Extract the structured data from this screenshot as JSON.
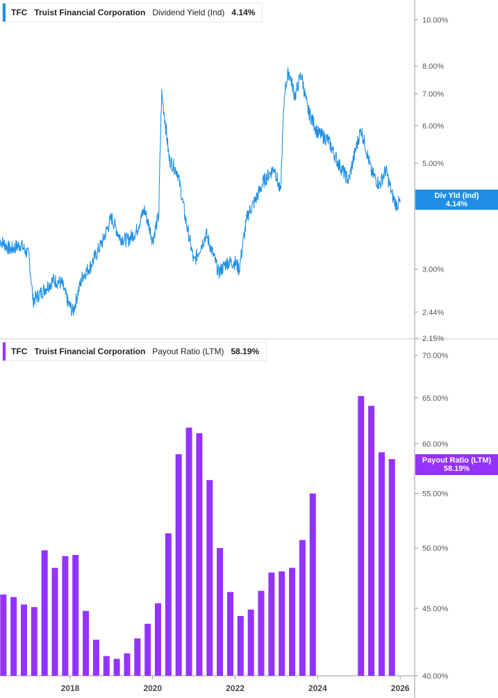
{
  "colors": {
    "yield_line": "#1f8fe5",
    "payout_bar": "#9433ff",
    "axis": "#9a9a9a",
    "grid_text": "#555555"
  },
  "top_panel": {
    "ticker": "TFC",
    "company": "Truist Financial Corporation",
    "metric": "Dividend Yield (Ind)",
    "value": "4.14%",
    "flag_label": "Div Yld (Ind)",
    "flag_value": "4.14%"
  },
  "bottom_panel": {
    "ticker": "TFC",
    "company": "Truist Financial Corporation",
    "metric": "Payout Ratio (LTM)",
    "value": "58.19%",
    "flag_label": "Payout Ratio (LTM)",
    "flag_value": "58.19%"
  },
  "chart_data": [
    {
      "type": "line",
      "series": [
        {
          "name": "Dividend Yield (Ind)",
          "color": "#1f8fe5"
        }
      ],
      "x_tick_labels": [
        "2018",
        "2020",
        "2022",
        "2024",
        "2026"
      ],
      "y_scale": "log",
      "y_tick_labels": [
        "10.00%",
        "8.00%",
        "7.00%",
        "6.00%",
        "5.00%",
        "3.00%",
        "2.44%",
        "2.15%"
      ],
      "y_tick_values": [
        10.0,
        8.0,
        7.0,
        6.0,
        5.0,
        3.0,
        2.44,
        2.15
      ],
      "ylim": [
        2.15,
        11.0
      ],
      "xlim": [
        2016.3,
        2026.35
      ],
      "points": [
        [
          2016.3,
          3.45
        ],
        [
          2016.55,
          3.3
        ],
        [
          2016.8,
          3.38
        ],
        [
          2017.0,
          3.2
        ],
        [
          2017.1,
          2.58
        ],
        [
          2017.3,
          2.68
        ],
        [
          2017.6,
          2.85
        ],
        [
          2017.8,
          2.8
        ],
        [
          2017.95,
          2.55
        ],
        [
          2018.07,
          2.44
        ],
        [
          2018.3,
          2.9
        ],
        [
          2018.5,
          3.05
        ],
        [
          2018.8,
          3.45
        ],
        [
          2019.0,
          3.85
        ],
        [
          2019.2,
          3.5
        ],
        [
          2019.4,
          3.45
        ],
        [
          2019.6,
          3.6
        ],
        [
          2019.8,
          4.0
        ],
        [
          2020.0,
          3.45
        ],
        [
          2020.15,
          3.9
        ],
        [
          2020.22,
          7.0
        ],
        [
          2020.4,
          5.1
        ],
        [
          2020.6,
          4.8
        ],
        [
          2020.8,
          3.8
        ],
        [
          2021.0,
          3.1
        ],
        [
          2021.3,
          3.55
        ],
        [
          2021.6,
          2.95
        ],
        [
          2021.8,
          3.1
        ],
        [
          2022.0,
          3.1
        ],
        [
          2022.1,
          3.0
        ],
        [
          2022.3,
          3.9
        ],
        [
          2022.5,
          4.2
        ],
        [
          2022.7,
          4.6
        ],
        [
          2022.95,
          4.9
        ],
        [
          2023.1,
          4.3
        ],
        [
          2023.2,
          7.1
        ],
        [
          2023.3,
          7.8
        ],
        [
          2023.45,
          6.9
        ],
        [
          2023.6,
          7.7
        ],
        [
          2023.75,
          6.5
        ],
        [
          2024.0,
          5.8
        ],
        [
          2024.25,
          5.6
        ],
        [
          2024.5,
          5.0
        ],
        [
          2024.75,
          4.6
        ],
        [
          2025.05,
          5.9
        ],
        [
          2025.3,
          4.8
        ],
        [
          2025.5,
          4.5
        ],
        [
          2025.65,
          4.85
        ],
        [
          2025.8,
          4.3
        ],
        [
          2025.9,
          4.1
        ],
        [
          2026.0,
          4.14
        ]
      ]
    },
    {
      "type": "bar",
      "series": [
        {
          "name": "Payout Ratio (LTM)",
          "color": "#9433ff"
        }
      ],
      "x_tick_labels": [
        "2018",
        "2020",
        "2022",
        "2024",
        "2026"
      ],
      "y_scale": "log",
      "y_tick_labels": [
        "70.00%",
        "65.00%",
        "60.00%",
        "55.00%",
        "50.00%",
        "45.00%",
        "40.00%"
      ],
      "y_tick_values": [
        70.0,
        65.0,
        60.0,
        55.0,
        50.0,
        45.0,
        40.0
      ],
      "ylim": [
        40.0,
        71.0
      ],
      "xlim": [
        2016.3,
        2026.35
      ],
      "bars": [
        {
          "x": 2016.38,
          "value": 46.1
        },
        {
          "x": 2016.63,
          "value": 45.9
        },
        {
          "x": 2016.88,
          "value": 45.3
        },
        {
          "x": 2017.13,
          "value": 45.1
        },
        {
          "x": 2017.38,
          "value": 49.8
        },
        {
          "x": 2017.63,
          "value": 48.3
        },
        {
          "x": 2017.88,
          "value": 49.3
        },
        {
          "x": 2018.13,
          "value": 49.4
        },
        {
          "x": 2018.38,
          "value": 44.8
        },
        {
          "x": 2018.63,
          "value": 42.6
        },
        {
          "x": 2018.88,
          "value": 41.4
        },
        {
          "x": 2019.13,
          "value": 41.2
        },
        {
          "x": 2019.38,
          "value": 41.6
        },
        {
          "x": 2019.63,
          "value": 42.7
        },
        {
          "x": 2019.88,
          "value": 43.8
        },
        {
          "x": 2020.13,
          "value": 45.4
        },
        {
          "x": 2020.38,
          "value": 51.3
        },
        {
          "x": 2020.63,
          "value": 58.9
        },
        {
          "x": 2020.88,
          "value": 61.7
        },
        {
          "x": 2021.13,
          "value": 61.1
        },
        {
          "x": 2021.38,
          "value": 56.3
        },
        {
          "x": 2021.63,
          "value": 50.0
        },
        {
          "x": 2021.88,
          "value": 46.3
        },
        {
          "x": 2022.13,
          "value": 44.4
        },
        {
          "x": 2022.38,
          "value": 44.9
        },
        {
          "x": 2022.63,
          "value": 46.4
        },
        {
          "x": 2022.88,
          "value": 47.9
        },
        {
          "x": 2023.13,
          "value": 48.0
        },
        {
          "x": 2023.38,
          "value": 48.3
        },
        {
          "x": 2023.63,
          "value": 50.7
        },
        {
          "x": 2023.88,
          "value": 55.0
        },
        {
          "x": 2025.05,
          "value": 65.2
        },
        {
          "x": 2025.3,
          "value": 64.1
        },
        {
          "x": 2025.55,
          "value": 59.1
        },
        {
          "x": 2025.8,
          "value": 58.4
        }
      ]
    }
  ]
}
